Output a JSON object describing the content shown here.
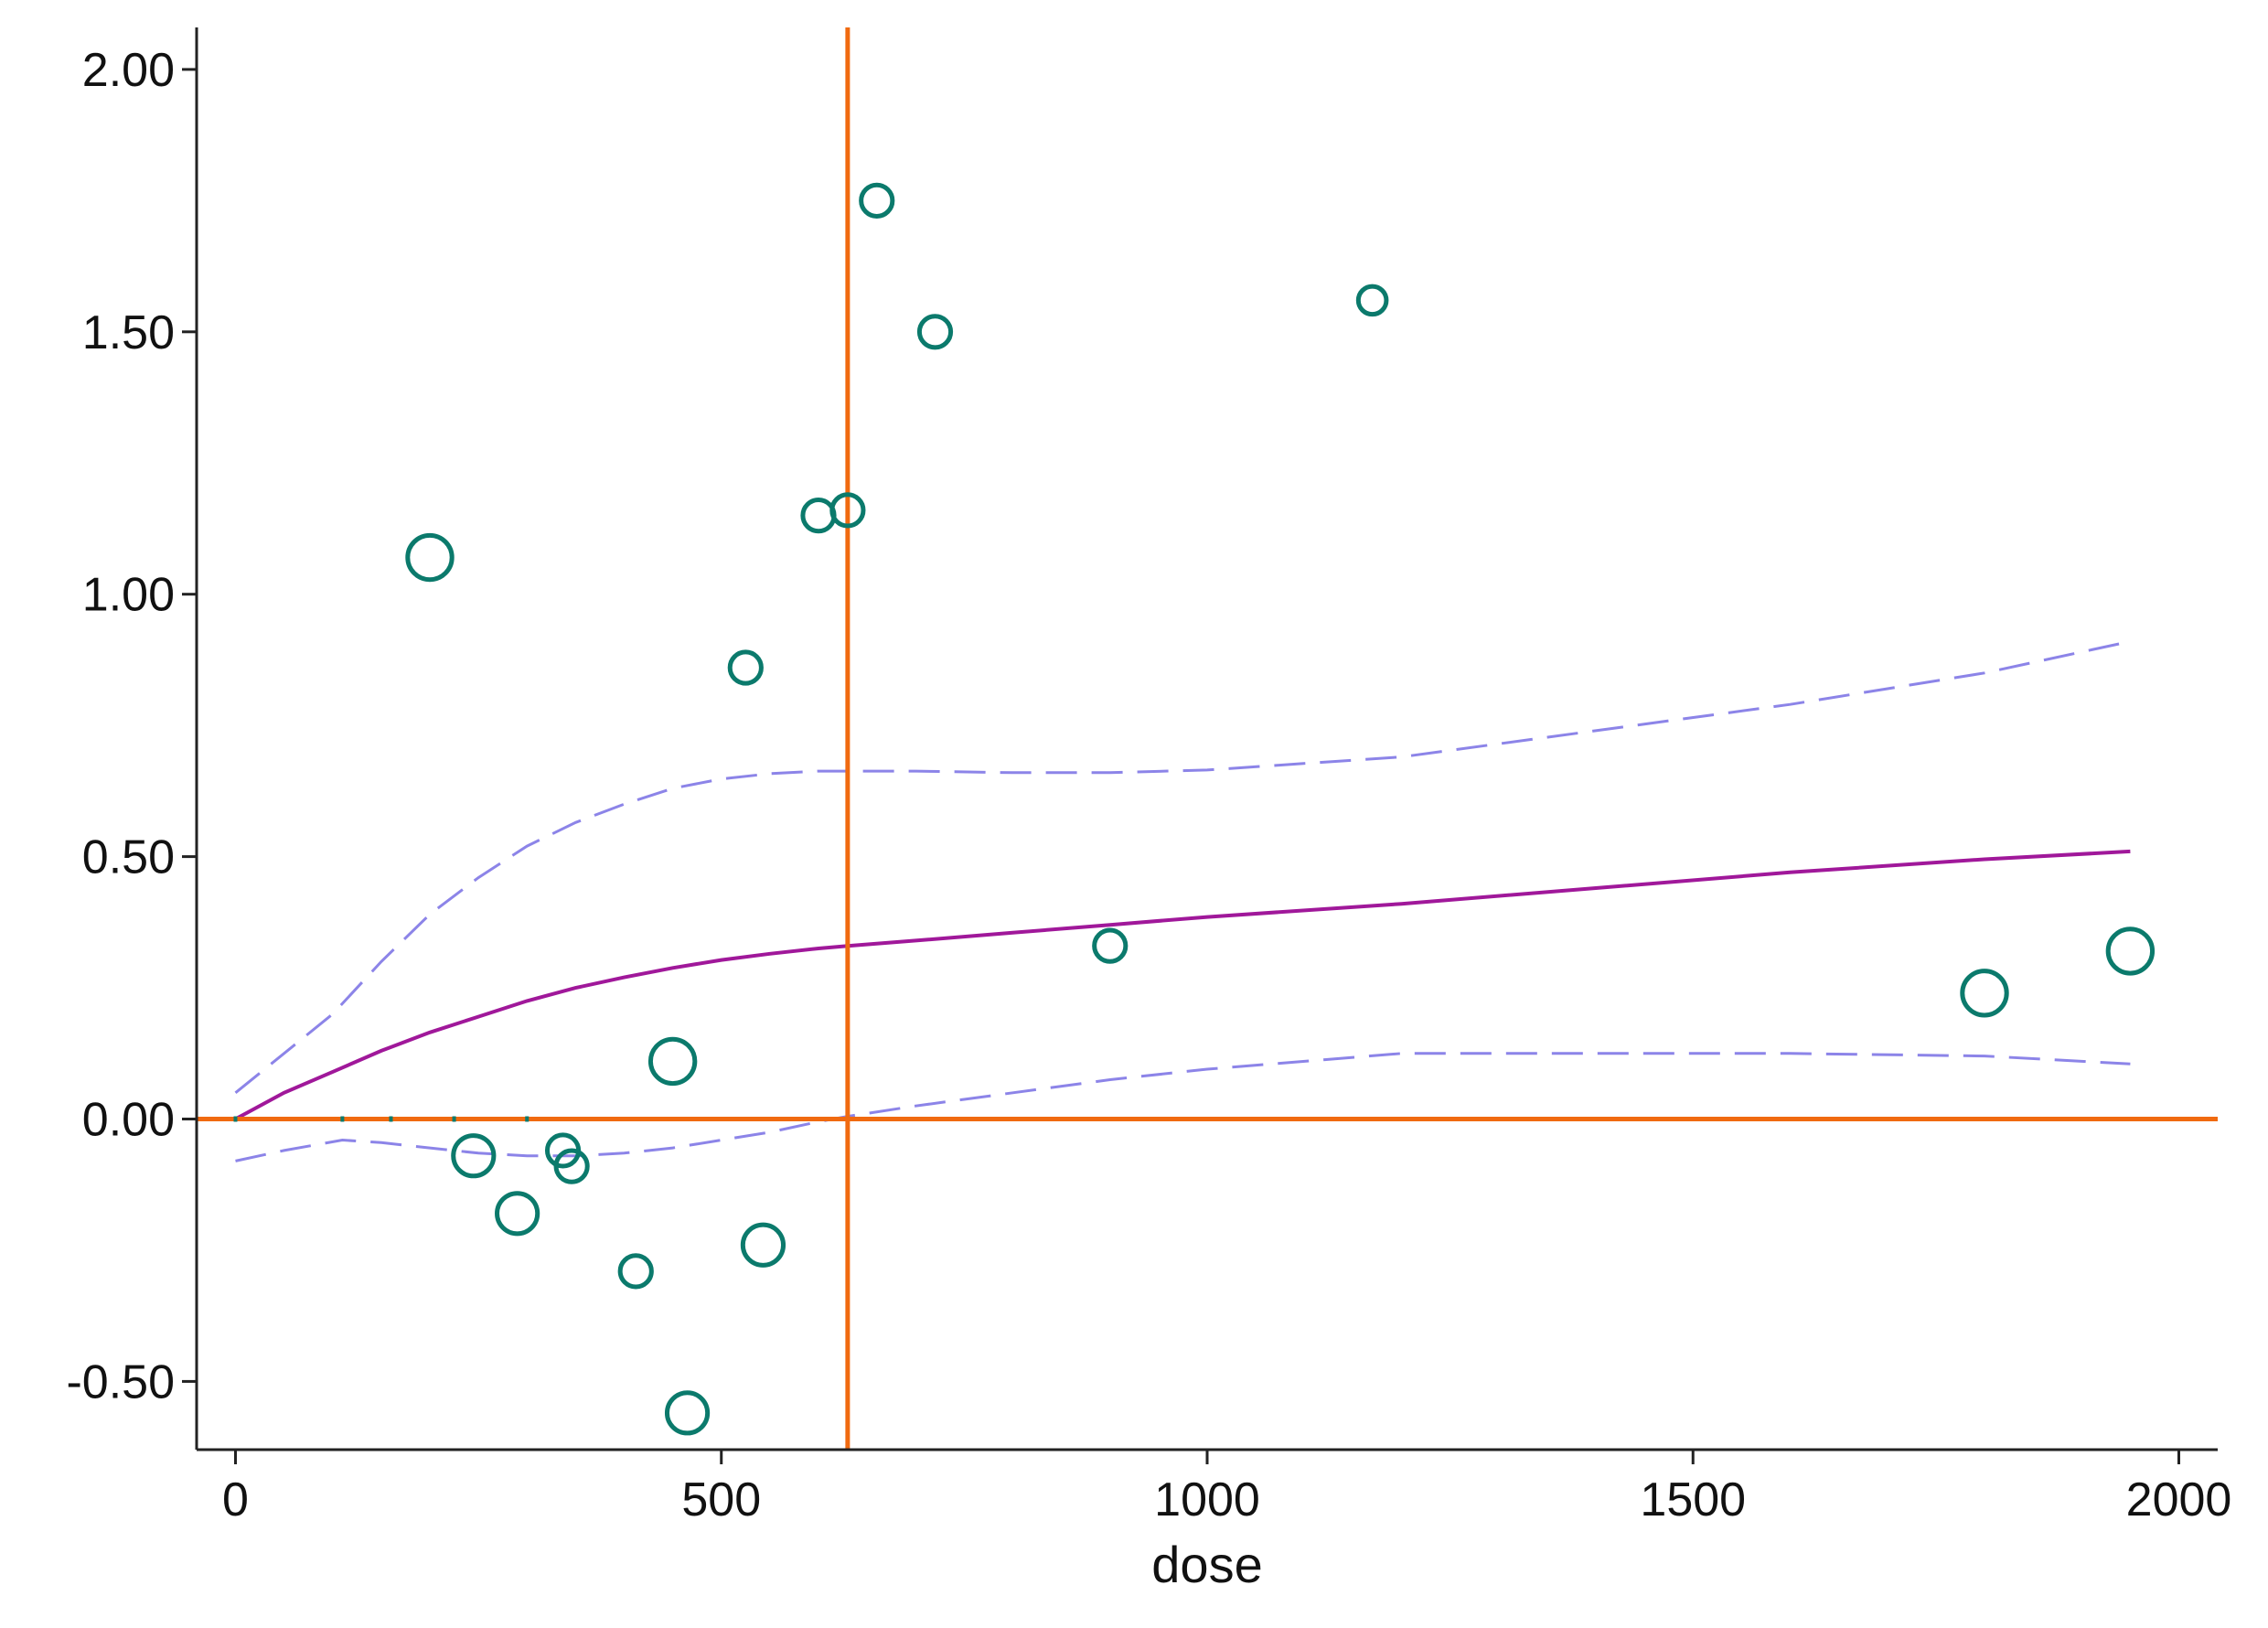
{
  "chart_data": {
    "type": "scatter",
    "title": "",
    "xlabel": "dose",
    "ylabel": "",
    "xlim": [
      -40,
      2040
    ],
    "ylim": [
      -0.63,
      2.08
    ],
    "x_ticks": [
      {
        "value": 0,
        "label": "0"
      },
      {
        "value": 500,
        "label": "500"
      },
      {
        "value": 1000,
        "label": "1000"
      },
      {
        "value": 1500,
        "label": "1500"
      },
      {
        "value": 2000,
        "label": "2000"
      }
    ],
    "y_ticks": [
      {
        "value": -0.5,
        "label": "-0.50"
      },
      {
        "value": 0,
        "label": "0.00"
      },
      {
        "value": 0.5,
        "label": "0.50"
      },
      {
        "value": 1.0,
        "label": "1.00"
      },
      {
        "value": 1.5,
        "label": "1.50"
      },
      {
        "value": 2.0,
        "label": "2.00"
      }
    ],
    "grid": false,
    "reference_lines": {
      "x": 630,
      "y": 0
    },
    "points": [
      {
        "x": 200,
        "y": 1.07,
        "weight": 3
      },
      {
        "x": 245,
        "y": -0.07,
        "weight": 2.5
      },
      {
        "x": 290,
        "y": -0.18,
        "weight": 2.5
      },
      {
        "x": 337,
        "y": -0.06,
        "weight": 1.5
      },
      {
        "x": 346,
        "y": -0.09,
        "weight": 1.5
      },
      {
        "x": 412,
        "y": -0.29,
        "weight": 1.5
      },
      {
        "x": 450,
        "y": 0.11,
        "weight": 3
      },
      {
        "x": 465,
        "y": -0.56,
        "weight": 2.5
      },
      {
        "x": 525,
        "y": 0.86,
        "weight": 1.5
      },
      {
        "x": 543,
        "y": -0.24,
        "weight": 2.5
      },
      {
        "x": 600,
        "y": 1.15,
        "weight": 1.5
      },
      {
        "x": 630,
        "y": 1.16,
        "weight": 1.5
      },
      {
        "x": 660,
        "y": 1.75,
        "weight": 1.5
      },
      {
        "x": 720,
        "y": 1.5,
        "weight": 1.5
      },
      {
        "x": 900,
        "y": 0.33,
        "weight": 1.5
      },
      {
        "x": 1170,
        "y": 1.56,
        "weight": 1.2
      },
      {
        "x": 1800,
        "y": 0.24,
        "weight": 3
      },
      {
        "x": 1950,
        "y": 0.32,
        "weight": 3
      }
    ],
    "rug_x": [
      0,
      110,
      160,
      225,
      300
    ],
    "series": [
      {
        "type": "line",
        "style": "solid",
        "x": [
          0,
          50,
          100,
          150,
          200,
          250,
          300,
          350,
          400,
          450,
          500,
          550,
          600,
          630,
          700,
          800,
          900,
          1000,
          1200,
          1400,
          1600,
          1800,
          1950
        ],
        "y": [
          0.0,
          0.05,
          0.09,
          0.13,
          0.165,
          0.195,
          0.225,
          0.25,
          0.27,
          0.288,
          0.303,
          0.315,
          0.325,
          0.33,
          0.34,
          0.355,
          0.37,
          0.385,
          0.41,
          0.44,
          0.47,
          0.495,
          0.51
        ]
      },
      {
        "type": "line",
        "style": "dashed",
        "x": [
          0,
          100,
          150,
          200,
          250,
          300,
          350,
          400,
          450,
          500,
          550,
          600,
          700,
          800,
          900,
          1000,
          1200,
          1400,
          1600,
          1800,
          1950
        ],
        "y": [
          0.05,
          0.2,
          0.3,
          0.39,
          0.46,
          0.52,
          0.565,
          0.6,
          0.63,
          0.648,
          0.658,
          0.663,
          0.663,
          0.66,
          0.66,
          0.665,
          0.69,
          0.74,
          0.79,
          0.85,
          0.91
        ]
      },
      {
        "type": "line",
        "style": "dashed",
        "x": [
          0,
          50,
          110,
          150,
          200,
          250,
          300,
          350,
          400,
          450,
          500,
          550,
          600,
          630,
          700,
          800,
          900,
          1000,
          1200,
          1400,
          1600,
          1800,
          1950
        ],
        "y": [
          -0.08,
          -0.06,
          -0.04,
          -0.045,
          -0.055,
          -0.065,
          -0.07,
          -0.07,
          -0.065,
          -0.055,
          -0.04,
          -0.025,
          -0.005,
          0.005,
          0.025,
          0.05,
          0.075,
          0.095,
          0.125,
          0.125,
          0.125,
          0.12,
          0.105
        ]
      }
    ],
    "colors": {
      "points": "#0b7a6c",
      "fit": "#a0189a",
      "ci": "#8c84e8",
      "reference": "#f06a10",
      "axis": "#222222"
    }
  }
}
